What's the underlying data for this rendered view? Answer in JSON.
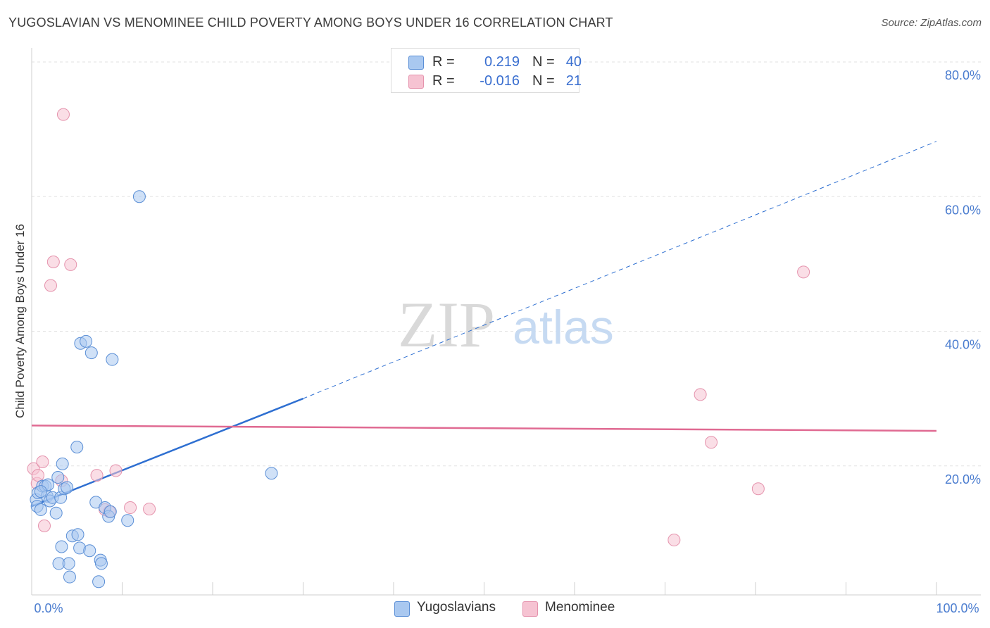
{
  "header": {
    "title": "YUGOSLAVIAN VS MENOMINEE CHILD POVERTY AMONG BOYS UNDER 16 CORRELATION CHART",
    "source": "Source: ZipAtlas.com"
  },
  "watermark": {
    "zip": "ZIP",
    "atlas": "atlas"
  },
  "legend": {
    "rows": [
      {
        "r_label": "R =",
        "r_value": "0.219",
        "n_label": "N =",
        "n_value": "40"
      },
      {
        "r_label": "R =",
        "r_value": "-0.016",
        "n_label": "N =",
        "n_value": "21"
      }
    ]
  },
  "bottom_legend": {
    "series1": "Yugoslavians",
    "series2": "Menominee"
  },
  "colors": {
    "yugoslavians_fill": "#a9c8f0",
    "yugoslavians_stroke": "#5b8fd6",
    "yugoslavians_line": "#2e6fd1",
    "menominee_fill": "#f6c3d2",
    "menominee_stroke": "#e593ad",
    "menominee_line": "#e06a92",
    "tick_text": "#4a7ccf",
    "grid": "#e2e2e2"
  },
  "chart_data": {
    "type": "scatter",
    "title": "YUGOSLAVIAN VS MENOMINEE CHILD POVERTY AMONG BOYS UNDER 16 CORRELATION CHART",
    "xlabel": "",
    "ylabel": "Child Poverty Among Boys Under 16",
    "xlim": [
      0,
      100
    ],
    "ylim": [
      0,
      80
    ],
    "x_tick_labels": [
      "0.0%",
      "100.0%"
    ],
    "y_ticks": [
      20,
      40,
      60,
      80
    ],
    "y_tick_labels": [
      "20.0%",
      "40.0%",
      "60.0%",
      "80.0%"
    ],
    "grid": true,
    "series": [
      {
        "name": "Yugoslavians",
        "r": 0.219,
        "n": 40,
        "points": [
          [
            0.5,
            15.0
          ],
          [
            0.6,
            14.0
          ],
          [
            0.7,
            16.0
          ],
          [
            1.0,
            13.5
          ],
          [
            1.2,
            17.0
          ],
          [
            1.5,
            17.0
          ],
          [
            1.7,
            15.5
          ],
          [
            1.8,
            17.2
          ],
          [
            2.0,
            14.8
          ],
          [
            2.3,
            15.3
          ],
          [
            2.7,
            13.0
          ],
          [
            2.9,
            18.3
          ],
          [
            3.0,
            5.5
          ],
          [
            3.2,
            15.3
          ],
          [
            3.3,
            8.0
          ],
          [
            3.4,
            20.3
          ],
          [
            3.6,
            16.6
          ],
          [
            3.9,
            16.8
          ],
          [
            4.1,
            5.5
          ],
          [
            4.2,
            3.5
          ],
          [
            4.5,
            9.6
          ],
          [
            5.0,
            22.8
          ],
          [
            5.1,
            9.8
          ],
          [
            5.3,
            7.8
          ],
          [
            5.4,
            38.2
          ],
          [
            6.0,
            38.5
          ],
          [
            6.4,
            7.4
          ],
          [
            6.6,
            36.8
          ],
          [
            7.1,
            14.6
          ],
          [
            7.4,
            2.8
          ],
          [
            7.6,
            6.0
          ],
          [
            7.7,
            5.5
          ],
          [
            8.1,
            13.8
          ],
          [
            8.5,
            12.5
          ],
          [
            8.7,
            13.2
          ],
          [
            8.9,
            35.8
          ],
          [
            10.6,
            11.9
          ],
          [
            11.9,
            60.0
          ],
          [
            26.5,
            18.9
          ],
          [
            1.0,
            16.2
          ]
        ],
        "trend": {
          "x0": 0,
          "y0": 14.0,
          "x1": 30,
          "y1": 30.0,
          "dashed_to_x": 100,
          "dashed_to_y": 68.2
        }
      },
      {
        "name": "Menominee",
        "r": -0.016,
        "n": 21,
        "points": [
          [
            0.2,
            19.6
          ],
          [
            0.6,
            17.4
          ],
          [
            0.7,
            18.6
          ],
          [
            1.2,
            20.6
          ],
          [
            1.4,
            11.1
          ],
          [
            2.1,
            46.8
          ],
          [
            2.4,
            50.3
          ],
          [
            3.3,
            17.8
          ],
          [
            3.5,
            72.2
          ],
          [
            4.3,
            49.9
          ],
          [
            7.2,
            18.6
          ],
          [
            8.1,
            13.5
          ],
          [
            8.6,
            13.2
          ],
          [
            9.3,
            19.3
          ],
          [
            10.9,
            13.8
          ],
          [
            13.0,
            13.6
          ],
          [
            71.0,
            9.0
          ],
          [
            73.9,
            30.6
          ],
          [
            75.1,
            23.5
          ],
          [
            80.3,
            16.6
          ],
          [
            85.3,
            48.8
          ]
        ],
        "trend": {
          "x0": 0,
          "y0": 26.0,
          "x1": 100,
          "y1": 25.2
        }
      }
    ]
  }
}
